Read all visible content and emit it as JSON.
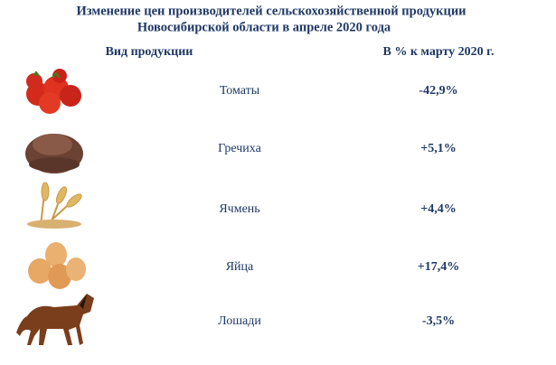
{
  "header": {
    "title_lines": [
      "Изменение цен производителей сельскохозяйственной продукции",
      "Новосибирской области в апреле 2020 года"
    ]
  },
  "table": {
    "columns": [
      "Вид продукции",
      "В % к марту 2020 г."
    ],
    "rows": [
      [
        "Томаты",
        "-42,9%"
      ],
      [
        "Гречиха",
        "+5,1%"
      ],
      [
        "Ячмень",
        "+4,4%"
      ],
      [
        "Яйца",
        "+17,4%"
      ],
      [
        "Лошади",
        "-3,5%"
      ]
    ]
  }
}
